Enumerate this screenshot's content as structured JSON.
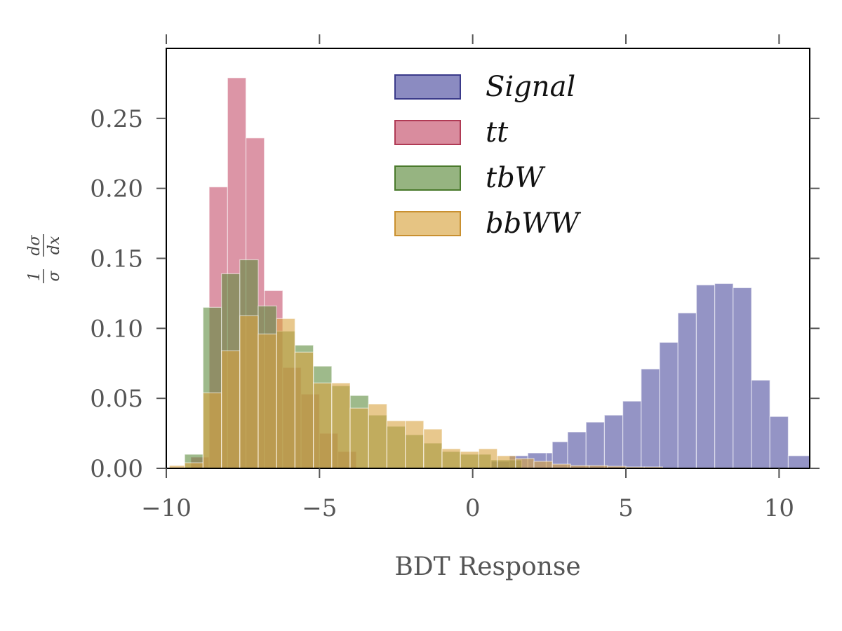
{
  "chart_data": {
    "type": "bar",
    "xlabel": "BDT Response",
    "ylabel": {
      "num": "1",
      "den": "σ",
      "frac_num": "dσ",
      "frac_den": "dx"
    },
    "xlim": [
      -10,
      11
    ],
    "ylim": [
      0,
      0.3
    ],
    "xticks": [
      -10,
      -5,
      0,
      5,
      10
    ],
    "xtick_labels": [
      "−10",
      "−5",
      "0",
      "5",
      "10"
    ],
    "yticks": [
      0,
      0.05,
      0.1,
      0.15,
      0.2,
      0.25
    ],
    "ytick_labels": [
      "0.00",
      "0.05",
      "0.10",
      "0.15",
      "0.20",
      "0.25"
    ],
    "grid": false,
    "legend_position": "top-center",
    "series": [
      {
        "name": "Signal",
        "fill": "#4d4d9f",
        "stroke": "#3a3a8a",
        "bins": [
          [
            0.6,
            1.2,
            0.005
          ],
          [
            1.2,
            1.8,
            0.009
          ],
          [
            1.8,
            2.4,
            0.011
          ],
          [
            2.4,
            2.6,
            0.011
          ],
          [
            2.6,
            3.1,
            0.019
          ],
          [
            3.1,
            3.7,
            0.026
          ],
          [
            3.7,
            4.3,
            0.033
          ],
          [
            4.3,
            4.9,
            0.038
          ],
          [
            4.9,
            5.5,
            0.048
          ],
          [
            5.5,
            6.1,
            0.071
          ],
          [
            6.1,
            6.7,
            0.09
          ],
          [
            6.7,
            7.3,
            0.111
          ],
          [
            7.3,
            7.9,
            0.131
          ],
          [
            7.9,
            8.5,
            0.132
          ],
          [
            8.5,
            9.1,
            0.129
          ],
          [
            9.1,
            9.7,
            0.063
          ],
          [
            9.7,
            10.3,
            0.037
          ],
          [
            10.3,
            11.0,
            0.009
          ]
        ]
      },
      {
        "name": "tt",
        "fill": "#c44e6a",
        "stroke": "#b03a55",
        "bins": [
          [
            -9.2,
            -8.6,
            0.008
          ],
          [
            -8.6,
            -8.0,
            0.201
          ],
          [
            -8.0,
            -7.4,
            0.279
          ],
          [
            -7.4,
            -6.8,
            0.236
          ],
          [
            -6.8,
            -6.2,
            0.127
          ],
          [
            -6.2,
            -5.6,
            0.072
          ],
          [
            -5.6,
            -5.0,
            0.053
          ],
          [
            -5.0,
            -4.4,
            0.025
          ],
          [
            -4.4,
            -3.8,
            0.012
          ]
        ]
      },
      {
        "name": "tbW",
        "fill": "#5e8c3e",
        "stroke": "#4a7a2c",
        "bins": [
          [
            -9.4,
            -8.8,
            0.01
          ],
          [
            -8.8,
            -8.2,
            0.115
          ],
          [
            -8.2,
            -7.6,
            0.139
          ],
          [
            -7.6,
            -7.0,
            0.149
          ],
          [
            -7.0,
            -6.4,
            0.116
          ],
          [
            -6.4,
            -5.8,
            0.098
          ],
          [
            -5.8,
            -5.2,
            0.088
          ],
          [
            -5.2,
            -4.6,
            0.073
          ],
          [
            -4.6,
            -4.0,
            0.059
          ],
          [
            -4.0,
            -3.4,
            0.052
          ],
          [
            -3.4,
            -2.8,
            0.038
          ],
          [
            -2.8,
            -2.2,
            0.03
          ],
          [
            -2.2,
            -1.6,
            0.024
          ],
          [
            -1.6,
            -1.0,
            0.018
          ],
          [
            -1.0,
            -0.4,
            0.012
          ],
          [
            -0.4,
            0.6,
            0.01
          ],
          [
            0.6,
            1.6,
            0.006
          ]
        ]
      },
      {
        "name": "bbWW",
        "fill": "#d9a441",
        "stroke": "#c99030",
        "bins": [
          [
            -9.9,
            -9.4,
            0.002
          ],
          [
            -9.4,
            -8.8,
            0.004
          ],
          [
            -8.8,
            -8.2,
            0.054
          ],
          [
            -8.2,
            -7.6,
            0.084
          ],
          [
            -7.6,
            -7.0,
            0.109
          ],
          [
            -7.0,
            -6.4,
            0.096
          ],
          [
            -6.4,
            -5.8,
            0.107
          ],
          [
            -5.8,
            -5.2,
            0.083
          ],
          [
            -5.2,
            -4.6,
            0.061
          ],
          [
            -4.6,
            -4.0,
            0.061
          ],
          [
            -4.0,
            -3.4,
            0.043
          ],
          [
            -3.4,
            -2.8,
            0.046
          ],
          [
            -2.8,
            -2.2,
            0.034
          ],
          [
            -2.2,
            -1.6,
            0.034
          ],
          [
            -1.6,
            -1.0,
            0.028
          ],
          [
            -1.0,
            -0.4,
            0.014
          ],
          [
            -0.4,
            0.2,
            0.012
          ],
          [
            0.2,
            0.8,
            0.014
          ],
          [
            0.8,
            1.4,
            0.009
          ],
          [
            1.4,
            2.0,
            0.007
          ],
          [
            2.0,
            2.6,
            0.005
          ],
          [
            2.6,
            3.2,
            0.003
          ],
          [
            3.2,
            3.8,
            0.002
          ],
          [
            3.8,
            4.4,
            0.002
          ],
          [
            4.4,
            5.0,
            0.0015
          ],
          [
            5.0,
            5.6,
            0.001
          ],
          [
            5.6,
            6.2,
            0.001
          ]
        ]
      }
    ]
  }
}
